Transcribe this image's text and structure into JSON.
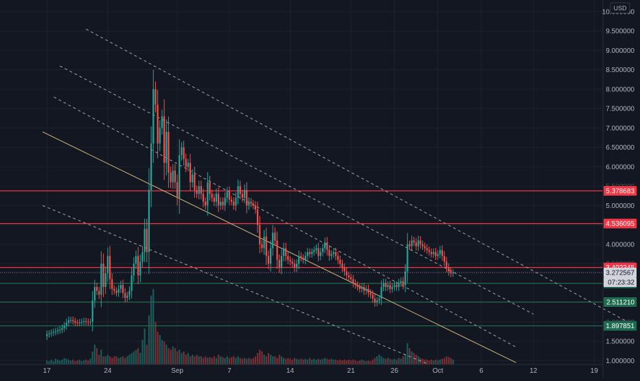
{
  "toolbar": {
    "currency_label": "USD"
  },
  "colors": {
    "background": "#131722",
    "grid": "#1f232d",
    "axis_text": "#b2b5be",
    "up": "#26a69a",
    "down": "#ef5350",
    "volume_up": "#1a5b59",
    "volume_down": "#7a2f34",
    "channel_solid": "#d8b87a",
    "channel_dashed": "#a8a8a8",
    "level_red": "#f23645",
    "level_green": "#1e6b4f",
    "last_price": "#d1d4dc"
  },
  "chart_data": {
    "type": "candlestick",
    "y_axis": {
      "currency": "USD",
      "ylim": [
        0.9,
        10.3
      ],
      "ticks": [
        "1.000000",
        "1.500000",
        "2.000000",
        "2.500000",
        "3.000000",
        "3.500000",
        "4.000000",
        "4.500000",
        "5.000000",
        "5.500000",
        "6.000000",
        "6.500000",
        "7.000000",
        "7.500000",
        "8.000000",
        "8.500000",
        "9.000000",
        "9.500000",
        "10.000000"
      ],
      "tick_values": [
        1,
        1.5,
        2,
        2.5,
        3,
        3.5,
        4,
        4.5,
        5,
        5.5,
        6,
        6.5,
        7,
        7.5,
        8,
        8.5,
        9,
        9.5,
        10
      ]
    },
    "x_axis": {
      "ticks": [
        {
          "label": "17",
          "day": 0
        },
        {
          "label": "24",
          "day": 7
        },
        {
          "label": "Sep",
          "day": 15
        },
        {
          "label": "7",
          "day": 21
        },
        {
          "label": "14",
          "day": 28
        },
        {
          "label": "21",
          "day": 35
        },
        {
          "label": "26",
          "day": 40
        },
        {
          "label": "Oct",
          "day": 45
        },
        {
          "label": "6",
          "day": 50
        },
        {
          "label": "12",
          "day": 56
        },
        {
          "label": "19",
          "day": 63
        }
      ],
      "day_range": [
        -5.4,
        64
      ]
    },
    "price_levels": [
      {
        "label": "5.378683",
        "value": 5.378683,
        "kind": "resistance"
      },
      {
        "label": "4.536095",
        "value": 4.536095,
        "kind": "resistance"
      },
      {
        "label": "3.402345",
        "value": 3.402345,
        "kind": "resistance"
      },
      {
        "label": "2.993936",
        "value": 2.993936,
        "kind": "support"
      },
      {
        "label": "2.511210",
        "value": 2.51121,
        "kind": "support"
      },
      {
        "label": "1.897851",
        "value": 1.897851,
        "kind": "support"
      }
    ],
    "last_price": {
      "label": "3.272567",
      "value": 3.272567,
      "countdown": "07:23:32"
    },
    "hidden_ticks": [
      {
        "label": "5.500000",
        "value": 5.5
      },
      {
        "label": "3.500000",
        "value": 3.5
      },
      {
        "label": "2.000000",
        "value": 2.0
      }
    ],
    "trend_lines": [
      {
        "style": "solid",
        "x1": -0.5,
        "y1": 6.9,
        "x2": 54,
        "y2": 0.95
      },
      {
        "style": "dashed",
        "x1": -0.5,
        "y1": 5.0,
        "x2": 44,
        "y2": 0.9
      },
      {
        "style": "dashed",
        "x1": 0.8,
        "y1": 7.8,
        "x2": 54,
        "y2": 1.35
      },
      {
        "style": "dashed",
        "x1": 1.5,
        "y1": 8.6,
        "x2": 56,
        "y2": 2.2
      },
      {
        "style": "dashed",
        "x1": 4.5,
        "y1": 9.55,
        "x2": 67,
        "y2": 1.98
      }
    ],
    "candles_per_day": 4,
    "ohlc_series": [
      1.68,
      1.7,
      1.72,
      1.74,
      1.76,
      1.78,
      1.8,
      1.84,
      1.9,
      1.98,
      2.04,
      2.05,
      2.02,
      1.98,
      1.97,
      1.99,
      2.0,
      2.02,
      2.0,
      1.99,
      2.0,
      2.55,
      2.9,
      2.8,
      2.7,
      3.5,
      2.9,
      3.25,
      3.7,
      3.1,
      2.85,
      2.8,
      2.75,
      2.85,
      2.95,
      2.75,
      2.62,
      2.68,
      2.8,
      3.2,
      3.5,
      3.7,
      3.2,
      3.55,
      3.8,
      4.4,
      3.8,
      5.4,
      6.6,
      8.0,
      7.6,
      6.6,
      7.0,
      7.3,
      6.1,
      6.9,
      5.85,
      5.6,
      5.9,
      5.6,
      5.2,
      6.3,
      6.5,
      6.2,
      6.0,
      6.1,
      5.6,
      5.8,
      5.4,
      5.3,
      5.5,
      5.3,
      5.1,
      5.0,
      5.6,
      5.3,
      5.2,
      5.1,
      5.3,
      5.0,
      5.1,
      5.0,
      5.2,
      5.35,
      5.15,
      5.1,
      5.0,
      5.2,
      5.5,
      5.3,
      5.2,
      5.4,
      5.0,
      5.1,
      5.05,
      5.0,
      4.9,
      4.5,
      4.0,
      3.9,
      4.2,
      3.7,
      3.5,
      3.9,
      4.3,
      4.1,
      3.6,
      3.4,
      3.7,
      3.9,
      3.7,
      3.6,
      3.55,
      3.5,
      3.4,
      3.5,
      3.7,
      3.65,
      3.6,
      3.7,
      3.8,
      3.75,
      3.8,
      3.85,
      3.9,
      3.7,
      3.8,
      3.9,
      4.05,
      3.85,
      3.7,
      3.75,
      3.8,
      3.7,
      3.6,
      3.5,
      3.4,
      3.3,
      3.2,
      3.15,
      3.1,
      3.0,
      2.95,
      2.9,
      2.85,
      2.9,
      2.8,
      2.85,
      2.75,
      2.7,
      2.6,
      2.5,
      2.55,
      2.6,
      2.9,
      3.0,
      2.9,
      2.95,
      2.85,
      2.9,
      2.95,
      2.9,
      3.0,
      3.05,
      2.95,
      3.3,
      4.0,
      3.95,
      4.1,
      4.05,
      3.95,
      4.1,
      4.0,
      3.95,
      3.9,
      3.85,
      3.8,
      3.75,
      3.8,
      3.7,
      3.75,
      3.85,
      3.7,
      3.55,
      3.4,
      3.3,
      3.25,
      3.27
    ],
    "volume_series": [
      0.25,
      0.2,
      0.3,
      0.2,
      0.35,
      0.3,
      0.25,
      0.3,
      0.4,
      0.35,
      0.3,
      0.25,
      0.3,
      0.2,
      0.25,
      0.3,
      0.2,
      0.25,
      0.3,
      0.25,
      0.35,
      0.8,
      1.2,
      1.0,
      0.6,
      0.9,
      0.5,
      0.5,
      0.6,
      0.5,
      0.4,
      0.5,
      0.5,
      0.4,
      0.45,
      0.5,
      0.4,
      0.5,
      0.6,
      0.7,
      0.8,
      0.9,
      1.0,
      0.7,
      1.5,
      2.2,
      1.2,
      3.0,
      4.2,
      4.6,
      2.6,
      2.0,
      1.8,
      1.5,
      1.4,
      1.2,
      1.0,
      0.9,
      1.1,
      1.0,
      0.8,
      0.9,
      0.7,
      0.8,
      0.6,
      0.7,
      0.5,
      0.6,
      0.5,
      0.6,
      0.5,
      0.5,
      0.4,
      0.5,
      0.4,
      0.45,
      0.4,
      0.5,
      0.4,
      0.6,
      0.5,
      0.45,
      0.4,
      0.5,
      0.4,
      0.45,
      0.5,
      0.4,
      0.5,
      0.4,
      0.35,
      0.4,
      0.35,
      0.4,
      0.35,
      0.4,
      0.5,
      0.7,
      0.9,
      0.8,
      0.6,
      0.5,
      0.7,
      0.6,
      0.5,
      0.5,
      0.4,
      0.6,
      0.5,
      0.4,
      0.35,
      0.4,
      0.35,
      0.3,
      0.4,
      0.35,
      0.3,
      0.35,
      0.3,
      0.35,
      0.3,
      0.4,
      0.3,
      0.35,
      0.3,
      0.35,
      0.3,
      0.35,
      0.4,
      0.35,
      0.3,
      0.35,
      0.3,
      0.3,
      0.25,
      0.3,
      0.25,
      0.3,
      0.25,
      0.3,
      0.25,
      0.3,
      0.25,
      0.2,
      0.25,
      0.3,
      0.25,
      0.2,
      0.25,
      0.2,
      0.3,
      0.4,
      0.5,
      0.6,
      0.5,
      0.4,
      0.35,
      0.4,
      0.35,
      0.3,
      0.35,
      0.3,
      0.4,
      0.35,
      0.5,
      0.6,
      1.3,
      1.0,
      0.8,
      0.7,
      0.6,
      0.5,
      0.4,
      0.35,
      0.3,
      0.3,
      0.25,
      0.3,
      0.25,
      0.3,
      0.25,
      0.3,
      0.35,
      0.4,
      0.5,
      0.45,
      0.4,
      0.3
    ]
  }
}
